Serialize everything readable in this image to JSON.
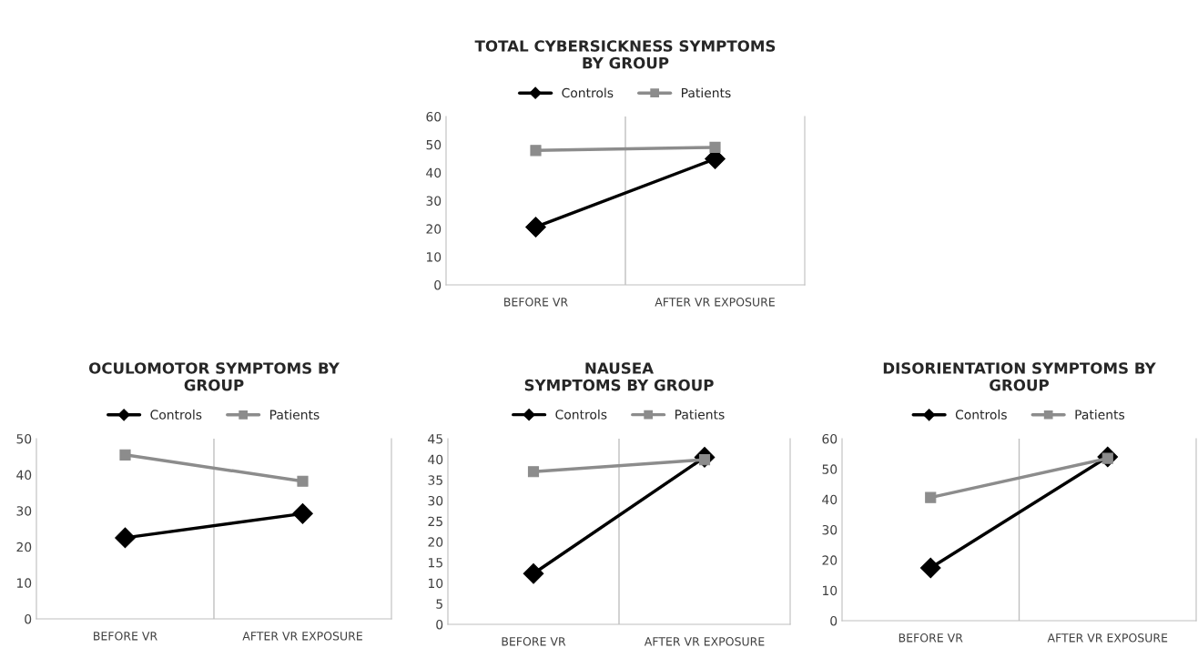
{
  "chart_data": [
    {
      "type": "line",
      "title": "TOTAL CYBERSICKNESS SYMPTOMS\nBY GROUP",
      "categories": [
        "BEFORE VR",
        "AFTER VR EXPOSURE"
      ],
      "ylim": [
        0,
        60
      ],
      "yticks": [
        0,
        10,
        20,
        30,
        40,
        50,
        60
      ],
      "grid": "x",
      "legend": "top",
      "series": [
        {
          "name": "Controls",
          "color": "#000000",
          "marker": "diamond",
          "values": [
            20.6,
            44.9
          ]
        },
        {
          "name": "Patients",
          "color": "#8c8c8c",
          "marker": "square",
          "values": [
            47.9,
            49.0
          ]
        }
      ]
    },
    {
      "type": "line",
      "title": "OCULOMOTOR SYMPTOMS BY\nGROUP",
      "categories": [
        "BEFORE VR",
        "AFTER VR EXPOSURE"
      ],
      "ylim": [
        0,
        50
      ],
      "yticks": [
        0,
        10,
        20,
        30,
        40,
        50
      ],
      "grid": "x",
      "legend": "top",
      "series": [
        {
          "name": "Controls",
          "color": "#000000",
          "marker": "diamond",
          "values": [
            22.5,
            29.2
          ]
        },
        {
          "name": "Patients",
          "color": "#8c8c8c",
          "marker": "square",
          "values": [
            45.5,
            38.2
          ]
        }
      ]
    },
    {
      "type": "line",
      "title": "NAUSEA\nSYMPTOMS BY GROUP",
      "categories": [
        "BEFORE VR",
        "AFTER VR EXPOSURE"
      ],
      "ylim": [
        0,
        45
      ],
      "yticks": [
        0,
        5,
        10,
        15,
        20,
        25,
        30,
        35,
        40,
        45
      ],
      "grid": "x",
      "legend": "top",
      "series": [
        {
          "name": "Controls",
          "color": "#000000",
          "marker": "diamond",
          "values": [
            12.3,
            40.5
          ]
        },
        {
          "name": "Patients",
          "color": "#8c8c8c",
          "marker": "square",
          "values": [
            37.0,
            39.9
          ]
        }
      ]
    },
    {
      "type": "line",
      "title": "DISORIENTATION SYMPTOMS BY\nGROUP",
      "categories": [
        "BEFORE VR",
        "AFTER VR EXPOSURE"
      ],
      "ylim": [
        0,
        60
      ],
      "yticks": [
        0,
        10,
        20,
        30,
        40,
        50,
        60
      ],
      "grid": "x",
      "legend": "top",
      "series": [
        {
          "name": "Controls",
          "color": "#000000",
          "marker": "diamond",
          "values": [
            17.4,
            54.0
          ]
        },
        {
          "name": "Patients",
          "color": "#8c8c8c",
          "marker": "square",
          "values": [
            40.6,
            53.5
          ]
        }
      ]
    }
  ]
}
